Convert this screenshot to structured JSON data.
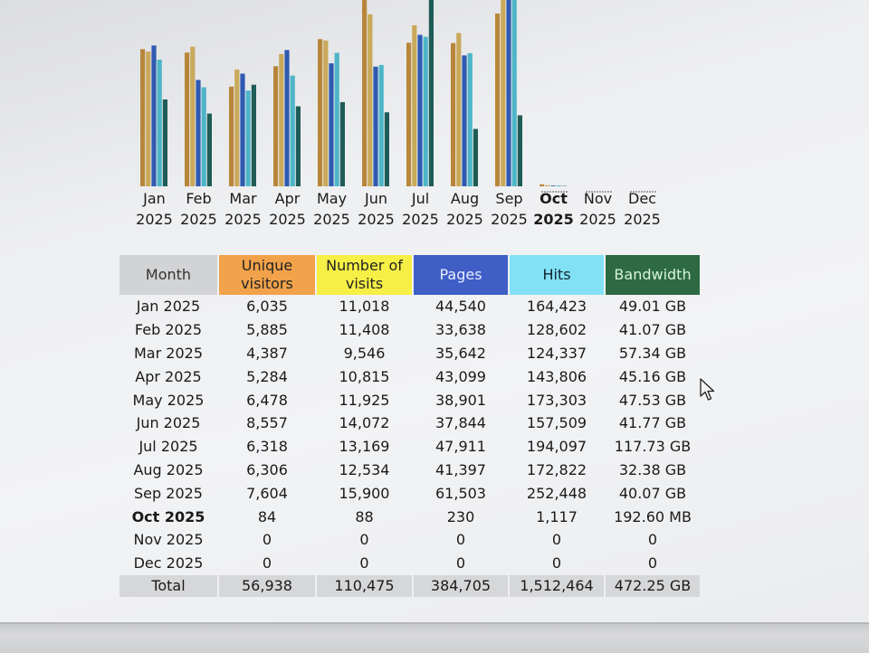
{
  "chart_data": {
    "type": "bar",
    "categories": [
      [
        "Jan",
        "2025"
      ],
      [
        "Feb",
        "2025"
      ],
      [
        "Mar",
        "2025"
      ],
      [
        "Apr",
        "2025"
      ],
      [
        "May",
        "2025"
      ],
      [
        "Jun",
        "2025"
      ],
      [
        "Jul",
        "2025"
      ],
      [
        "Aug",
        "2025"
      ],
      [
        "Sep",
        "2025"
      ],
      [
        "Oct",
        "2025"
      ],
      [
        "Nov",
        "2025"
      ],
      [
        "Dec",
        "2025"
      ]
    ],
    "current_index": 9,
    "series": [
      {
        "name": "Unique visitors",
        "color": "#b8863a",
        "values": [
          6035,
          5885,
          4387,
          5284,
          6478,
          8557,
          6318,
          6306,
          7604,
          84,
          0,
          0
        ]
      },
      {
        "name": "Number of visits",
        "color": "#c9a95a",
        "values": [
          11018,
          11408,
          9546,
          10815,
          11925,
          14072,
          13169,
          12534,
          15900,
          88,
          0,
          0
        ]
      },
      {
        "name": "Pages",
        "color": "#2f5ab0",
        "values": [
          44540,
          33638,
          35642,
          43099,
          38901,
          37844,
          47911,
          41397,
          61503,
          230,
          0,
          0
        ]
      },
      {
        "name": "Hits",
        "color": "#4db5c8",
        "values": [
          164423,
          128602,
          124337,
          143806,
          173303,
          157509,
          194097,
          172822,
          252448,
          1117,
          0,
          0
        ]
      },
      {
        "name": "Bandwidth",
        "color": "#1f5c57",
        "values_gb": [
          49.01,
          41.07,
          57.34,
          45.16,
          47.53,
          41.77,
          117.73,
          32.38,
          40.07,
          0.19,
          0,
          0
        ]
      }
    ]
  },
  "table": {
    "headers": {
      "month": "Month",
      "unique_visitors": [
        "Unique",
        "visitors"
      ],
      "visits": [
        "Number of",
        "visits"
      ],
      "pages": "Pages",
      "hits": "Hits",
      "bandwidth": "Bandwidth"
    },
    "rows": [
      {
        "month": "Jan 2025",
        "uv": "6,035",
        "nv": "11,018",
        "pages": "44,540",
        "hits": "164,423",
        "bw": "49.01 GB"
      },
      {
        "month": "Feb 2025",
        "uv": "5,885",
        "nv": "11,408",
        "pages": "33,638",
        "hits": "128,602",
        "bw": "41.07 GB"
      },
      {
        "month": "Mar 2025",
        "uv": "4,387",
        "nv": "9,546",
        "pages": "35,642",
        "hits": "124,337",
        "bw": "57.34 GB"
      },
      {
        "month": "Apr 2025",
        "uv": "5,284",
        "nv": "10,815",
        "pages": "43,099",
        "hits": "143,806",
        "bw": "45.16 GB"
      },
      {
        "month": "May 2025",
        "uv": "6,478",
        "nv": "11,925",
        "pages": "38,901",
        "hits": "173,303",
        "bw": "47.53 GB"
      },
      {
        "month": "Jun 2025",
        "uv": "8,557",
        "nv": "14,072",
        "pages": "37,844",
        "hits": "157,509",
        "bw": "41.77 GB"
      },
      {
        "month": "Jul 2025",
        "uv": "6,318",
        "nv": "13,169",
        "pages": "47,911",
        "hits": "194,097",
        "bw": "117.73 GB"
      },
      {
        "month": "Aug 2025",
        "uv": "6,306",
        "nv": "12,534",
        "pages": "41,397",
        "hits": "172,822",
        "bw": "32.38 GB"
      },
      {
        "month": "Sep 2025",
        "uv": "7,604",
        "nv": "15,900",
        "pages": "61,503",
        "hits": "252,448",
        "bw": "40.07 GB"
      },
      {
        "month": "Oct 2025",
        "uv": "84",
        "nv": "88",
        "pages": "230",
        "hits": "1,117",
        "bw": "192.60 MB",
        "current": true
      },
      {
        "month": "Nov 2025",
        "uv": "0",
        "nv": "0",
        "pages": "0",
        "hits": "0",
        "bw": "0"
      },
      {
        "month": "Dec 2025",
        "uv": "0",
        "nv": "0",
        "pages": "0",
        "hits": "0",
        "bw": "0"
      }
    ],
    "total": {
      "label": "Total",
      "uv": "56,938",
      "nv": "110,475",
      "pages": "384,705",
      "hits": "1,512,464",
      "bw": "472.25 GB"
    }
  }
}
